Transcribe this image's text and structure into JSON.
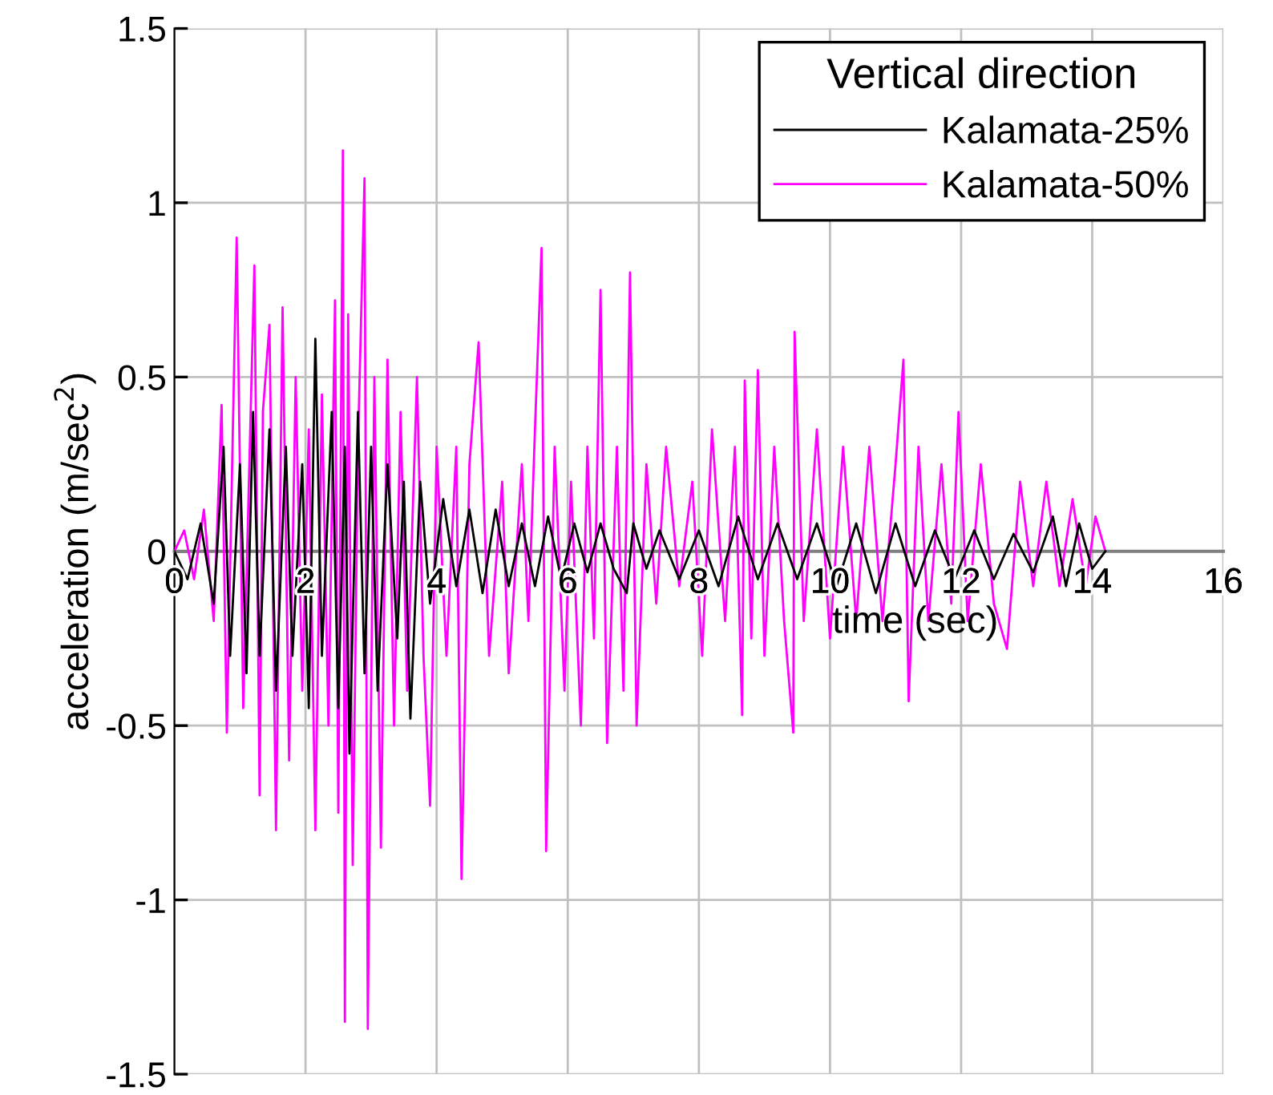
{
  "chart_data": {
    "type": "line",
    "xlabel": "time (sec)",
    "ylabel": "acceleration (m/sec$^{2}$)",
    "legend_title": "Vertical direction",
    "legend": "top right",
    "grid": true,
    "marker": "none",
    "line_style": "solid",
    "xlim": [
      0,
      16
    ],
    "xticks": [
      0,
      2,
      4,
      6,
      8,
      10,
      12,
      14,
      16
    ],
    "ylim": [
      -1.5,
      1.5
    ],
    "yticks": [
      -1.5,
      -1,
      -0.5,
      0,
      0.5,
      1,
      1.5
    ],
    "series": [
      {
        "name": "Kalamata-50%",
        "color": "#ff00ff",
        "x": [
          0,
          0.15,
          0.3,
          0.45,
          0.6,
          0.72,
          0.8,
          0.95,
          1.05,
          1.15,
          1.22,
          1.3,
          1.35,
          1.45,
          1.55,
          1.65,
          1.75,
          1.85,
          1.95,
          2.05,
          2.15,
          2.25,
          2.35,
          2.45,
          2.5,
          2.57,
          2.6,
          2.65,
          2.72,
          2.8,
          2.9,
          2.95,
          3.05,
          3.15,
          3.25,
          3.35,
          3.45,
          3.55,
          3.7,
          3.8,
          3.9,
          4.0,
          4.15,
          4.3,
          4.38,
          4.5,
          4.64,
          4.8,
          5.0,
          5.1,
          5.3,
          5.4,
          5.5,
          5.6,
          5.67,
          5.8,
          5.95,
          6.05,
          6.2,
          6.3,
          6.4,
          6.5,
          6.6,
          6.75,
          6.85,
          6.95,
          7.05,
          7.2,
          7.35,
          7.5,
          7.7,
          7.9,
          8.05,
          8.2,
          8.4,
          8.55,
          8.66,
          8.7,
          8.8,
          8.9,
          9.0,
          9.15,
          9.3,
          9.44,
          9.46,
          9.6,
          9.8,
          10.0,
          10.2,
          10.4,
          10.6,
          10.8,
          11.0,
          11.12,
          11.2,
          11.35,
          11.5,
          11.7,
          11.85,
          11.96,
          12.1,
          12.3,
          12.5,
          12.7,
          12.9,
          13.1,
          13.3,
          13.5,
          13.7,
          13.9,
          14.05,
          14.2
        ],
        "values": [
          0,
          0.06,
          -0.08,
          0.12,
          -0.2,
          0.42,
          -0.52,
          0.9,
          -0.45,
          0.3,
          0.82,
          -0.7,
          0.4,
          0.65,
          -0.8,
          0.7,
          -0.6,
          0.5,
          -0.4,
          0.35,
          -0.8,
          0.45,
          -0.5,
          0.72,
          -0.75,
          1.15,
          -1.35,
          0.68,
          -0.9,
          0.3,
          1.07,
          -1.37,
          0.5,
          -0.85,
          0.55,
          -0.5,
          0.4,
          -0.4,
          0.5,
          -0.3,
          -0.73,
          0.3,
          -0.3,
          0.3,
          -0.94,
          0.25,
          0.6,
          -0.3,
          0.2,
          -0.35,
          0.25,
          -0.2,
          0.35,
          0.87,
          -0.86,
          0.3,
          -0.4,
          0.2,
          -0.5,
          0.3,
          -0.25,
          0.75,
          -0.55,
          0.3,
          -0.4,
          0.8,
          -0.5,
          0.25,
          -0.15,
          0.3,
          -0.1,
          0.2,
          -0.3,
          0.35,
          -0.2,
          0.3,
          -0.47,
          0.49,
          -0.25,
          0.52,
          -0.3,
          0.3,
          -0.2,
          -0.52,
          0.63,
          -0.2,
          0.35,
          -0.25,
          0.3,
          -0.2,
          0.3,
          -0.2,
          0.25,
          0.55,
          -0.43,
          0.3,
          -0.2,
          0.25,
          -0.15,
          0.4,
          -0.2,
          0.25,
          -0.15,
          -0.28,
          0.2,
          -0.1,
          0.2,
          -0.1,
          0.15,
          -0.1,
          0.1,
          0
        ]
      },
      {
        "name": "Kalamata-25%",
        "color": "#000000",
        "x": [
          0,
          0.2,
          0.4,
          0.6,
          0.75,
          0.85,
          1.0,
          1.1,
          1.2,
          1.3,
          1.45,
          1.55,
          1.7,
          1.8,
          1.95,
          2.05,
          2.15,
          2.25,
          2.4,
          2.5,
          2.6,
          2.67,
          2.8,
          2.9,
          3.0,
          3.1,
          3.25,
          3.4,
          3.5,
          3.6,
          3.75,
          3.9,
          4.1,
          4.3,
          4.5,
          4.7,
          4.9,
          5.1,
          5.3,
          5.5,
          5.7,
          5.9,
          6.1,
          6.3,
          6.5,
          6.7,
          6.9,
          7.0,
          7.2,
          7.4,
          7.7,
          8.0,
          8.3,
          8.6,
          8.9,
          9.2,
          9.5,
          9.8,
          10.1,
          10.4,
          10.7,
          11.0,
          11.3,
          11.6,
          11.9,
          12.2,
          12.5,
          12.8,
          13.1,
          13.4,
          13.6,
          13.8,
          14.0,
          14.2
        ],
        "values": [
          0,
          -0.08,
          0.08,
          -0.15,
          0.3,
          -0.3,
          0.25,
          -0.35,
          0.4,
          -0.3,
          0.35,
          -0.4,
          0.3,
          -0.3,
          0.25,
          -0.45,
          0.61,
          -0.3,
          0.4,
          -0.45,
          0.3,
          -0.58,
          0.4,
          -0.35,
          0.3,
          -0.4,
          0.25,
          -0.25,
          0.2,
          -0.48,
          0.2,
          -0.15,
          0.15,
          -0.1,
          0.12,
          -0.12,
          0.12,
          -0.1,
          0.08,
          -0.1,
          0.1,
          -0.08,
          0.08,
          -0.06,
          0.08,
          -0.05,
          -0.12,
          0.08,
          -0.05,
          0.06,
          -0.08,
          0.06,
          -0.1,
          0.1,
          -0.08,
          0.08,
          -0.08,
          0.08,
          -0.1,
          0.08,
          -0.12,
          0.08,
          -0.1,
          0.06,
          -0.08,
          0.06,
          -0.08,
          0.05,
          -0.06,
          0.1,
          -0.1,
          0.08,
          -0.05,
          0
        ]
      }
    ]
  }
}
